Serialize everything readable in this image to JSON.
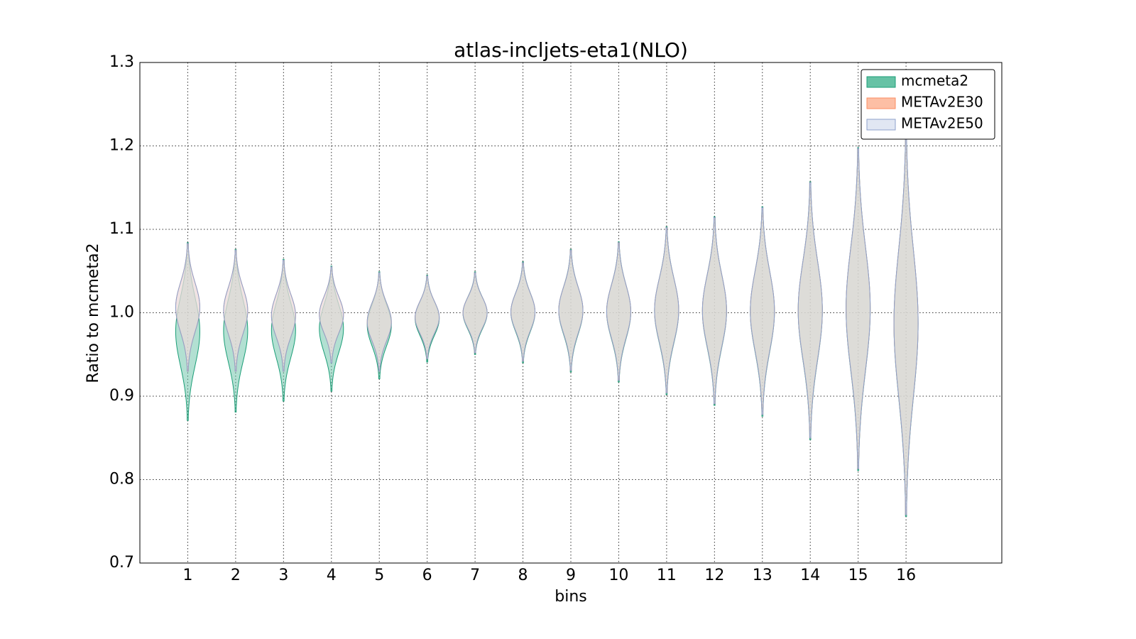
{
  "chart_data": {
    "type": "violin",
    "title": "atlas-incljets-eta1(NLO)",
    "x_label": "bins",
    "y_label": "Ratio to mcmeta2",
    "x": [
      1,
      2,
      3,
      4,
      5,
      6,
      7,
      8,
      9,
      10,
      11,
      12,
      13,
      14,
      15,
      16
    ],
    "xlim": [
      0,
      18
    ],
    "xticks": [
      1,
      2,
      3,
      4,
      5,
      6,
      7,
      8,
      9,
      10,
      11,
      12,
      13,
      14,
      15,
      16
    ],
    "ylim": [
      0.7,
      1.3
    ],
    "yticks": [
      0.7,
      0.8,
      0.9,
      {
        "value": 1,
        "label": "1.0"
      },
      1.1,
      1.2,
      1.3
    ],
    "grid": true,
    "legend": "upper right",
    "series": [
      {
        "name": "mcmeta2",
        "color": "#66c2a5",
        "edge": "#1b9e77",
        "lower": [
          0.871,
          0.881,
          0.894,
          0.906,
          0.921,
          0.941,
          0.95,
          0.94,
          0.929,
          0.917,
          0.902,
          0.889,
          0.876,
          0.848,
          0.811,
          0.756
        ],
        "upper": [
          1.084,
          1.076,
          1.064,
          1.056,
          1.049,
          1.045,
          1.049,
          1.061,
          1.076,
          1.085,
          1.103,
          1.115,
          1.127,
          1.157,
          1.198,
          1.218
        ]
      },
      {
        "name": "METAv2E30",
        "color": "#fdbfa5",
        "edge": "#fc8d62",
        "lower": [
          0.93,
          0.93,
          0.93,
          0.94,
          0.93,
          0.945,
          0.952,
          0.942,
          0.931,
          0.919,
          0.904,
          0.891,
          0.878,
          0.85,
          0.813,
          0.758
        ],
        "upper": [
          1.083,
          1.075,
          1.063,
          1.055,
          1.048,
          1.044,
          1.048,
          1.06,
          1.075,
          1.084,
          1.102,
          1.114,
          1.126,
          1.156,
          1.197,
          1.217
        ]
      },
      {
        "name": "METAv2E50",
        "color": "#e1e7f3",
        "edge": "#8da0cb",
        "lower": [
          0.93,
          0.93,
          0.93,
          0.94,
          0.93,
          0.945,
          0.952,
          0.942,
          0.931,
          0.919,
          0.904,
          0.891,
          0.878,
          0.85,
          0.813,
          0.758
        ],
        "upper": [
          1.083,
          1.075,
          1.063,
          1.055,
          1.048,
          1.044,
          1.048,
          1.06,
          1.075,
          1.084,
          1.102,
          1.114,
          1.126,
          1.156,
          1.197,
          1.217
        ]
      }
    ]
  }
}
